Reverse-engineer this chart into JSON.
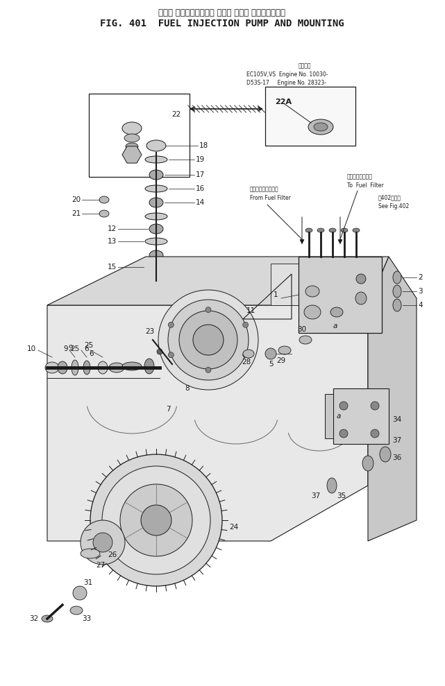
{
  "title_japanese": "フェル インジェクション ポンプ および マウンティング",
  "title_english": "FIG. 401  FUEL INJECTION PUMP AND MOUNTING",
  "bg_color": "#ffffff",
  "text_color": "#000000",
  "fig_width": 6.41,
  "fig_height": 9.89,
  "info_line1": "適用専機",
  "info_line2": "EC105V,VS  Engine No. 10030-",
  "info_line3": "D53S-17     Engine No. 28323-",
  "label_22A": "22A",
  "from_filter_ja": "フェルフィルタから",
  "from_filter_en": "From Fuel Filter",
  "to_filter_ja": "フェルフィルタへ",
  "to_filter_en": "To  Fuel  Filter",
  "see_fig_ja": "第402図参照",
  "see_fig_en": "See Fig.402"
}
